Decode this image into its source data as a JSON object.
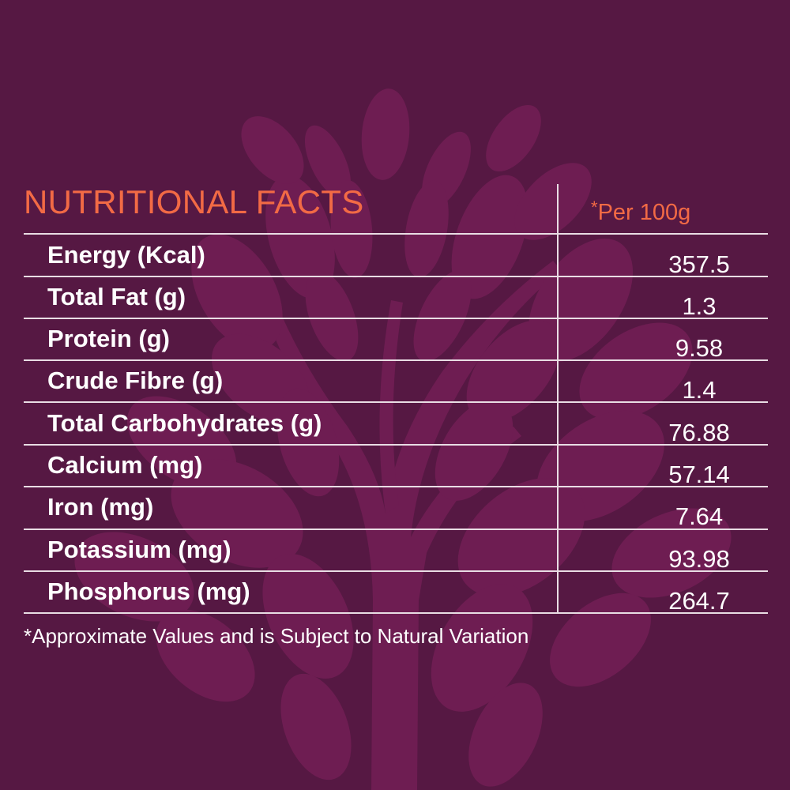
{
  "title": "NUTRITIONAL FACTS",
  "per": {
    "star": "*",
    "text": "Per 100g"
  },
  "rows": [
    {
      "label": "Energy (Kcal)",
      "value": "357.5"
    },
    {
      "label": "Total Fat (g)",
      "value": "1.3"
    },
    {
      "label": "Protein (g)",
      "value": "9.58"
    },
    {
      "label": "Crude Fibre (g)",
      "value": "1.4"
    },
    {
      "label": "Total Carbohydrates (g)",
      "value": "76.88"
    },
    {
      "label": "Calcium (mg)",
      "value": "57.14"
    },
    {
      "label": "Iron (mg)",
      "value": "7.64"
    },
    {
      "label": "Potassium (mg)",
      "value": "93.98"
    },
    {
      "label": "Phosphorus (mg)",
      "value": "264.7"
    }
  ],
  "footnote": "*Approximate Values and is Subject to Natural Variation",
  "colors": {
    "background": "#561843",
    "accent": "#f26a45",
    "text": "#ffffff",
    "tree": "#6e1d52"
  },
  "decoration": "tree-watermark-icon"
}
